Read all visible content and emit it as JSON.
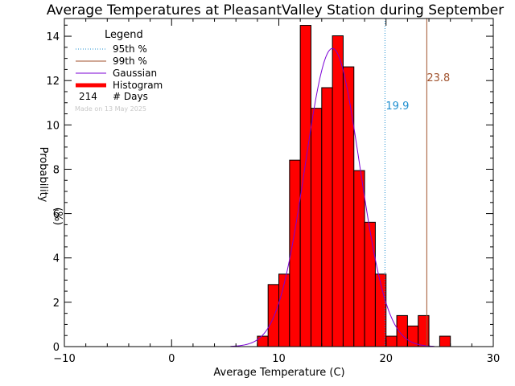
{
  "chart_data": {
    "type": "bar",
    "title": "Average Temperatures at PleasantValley Station during September",
    "xlabel": "Average Temperature (C)",
    "ylabel": "Probability",
    "ylabel_unit": "(%)",
    "xlim": [
      -10,
      30
    ],
    "ylim": [
      0,
      14.8
    ],
    "xticks": [
      -10,
      0,
      10,
      20,
      30
    ],
    "yticks": [
      0,
      2,
      4,
      6,
      8,
      10,
      12,
      14
    ],
    "bin_width": 1,
    "bins": [
      {
        "x0": 8,
        "value": 0.47
      },
      {
        "x0": 9,
        "value": 2.8
      },
      {
        "x0": 10,
        "value": 3.27
      },
      {
        "x0": 11,
        "value": 8.41
      },
      {
        "x0": 12,
        "value": 14.49
      },
      {
        "x0": 13,
        "value": 10.75
      },
      {
        "x0": 14,
        "value": 11.68
      },
      {
        "x0": 15,
        "value": 14.02
      },
      {
        "x0": 16,
        "value": 12.62
      },
      {
        "x0": 17,
        "value": 7.94
      },
      {
        "x0": 18,
        "value": 5.61
      },
      {
        "x0": 19,
        "value": 3.27
      },
      {
        "x0": 20,
        "value": 0.47
      },
      {
        "x0": 21,
        "value": 1.4
      },
      {
        "x0": 22,
        "value": 0.93
      },
      {
        "x0": 23,
        "value": 1.4
      },
      {
        "x0": 25,
        "value": 0.47
      }
    ],
    "gaussian": {
      "mean": 15.0,
      "sd": 2.55,
      "peak": 13.45,
      "x_range": [
        5.5,
        24.5
      ]
    },
    "p95": {
      "value": 19.9,
      "label": "19.9",
      "color": "#1f8fd0"
    },
    "p99": {
      "value": 23.8,
      "label": "23.8",
      "color": "#a0522d"
    },
    "histogram_color": "#ff0000",
    "gaussian_color": "#7b00d6",
    "legend": {
      "title": "Legend",
      "entries": [
        {
          "label": "95th %",
          "style": "dotted",
          "color": "#1f8fd0"
        },
        {
          "label": "99th %",
          "style": "solid",
          "color": "#a0522d"
        },
        {
          "label": "Gaussian",
          "style": "solid",
          "color": "#7b00d6"
        },
        {
          "label": "Histogram",
          "style": "thick",
          "color": "#ff0000"
        }
      ],
      "days_count": "214",
      "days_label": "# Days",
      "made_on": "Made on 13 May 2025"
    }
  }
}
